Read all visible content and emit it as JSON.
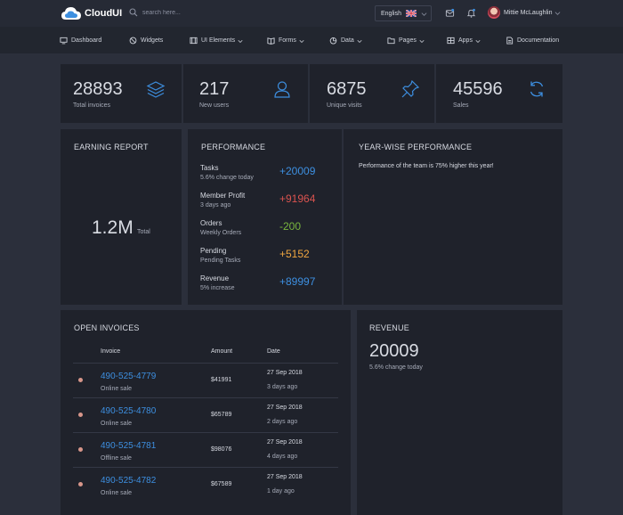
{
  "header": {
    "brand": "CloudUI",
    "search_placeholder": "search here...",
    "language": "English",
    "user_name": "Mittie McLaughlin"
  },
  "nav": [
    {
      "label": "Dashboard"
    },
    {
      "label": "Widgets"
    },
    {
      "label": "UI Elements"
    },
    {
      "label": "Forms"
    },
    {
      "label": "Data"
    },
    {
      "label": "Pages"
    },
    {
      "label": "Apps"
    },
    {
      "label": "Documentation"
    }
  ],
  "stats": [
    {
      "value": "28893",
      "label": "Total invoices",
      "icon": "layers-icon"
    },
    {
      "value": "217",
      "label": "New users",
      "icon": "user-icon"
    },
    {
      "value": "6875",
      "label": "Unique visits",
      "icon": "pin-icon"
    },
    {
      "value": "45596",
      "label": "Sales",
      "icon": "refresh-icon"
    }
  ],
  "earning": {
    "title": "EARNING REPORT",
    "value": "1.2M",
    "sub": "Total"
  },
  "performance": {
    "title": "PERFORMANCE",
    "rows": [
      {
        "name": "Tasks",
        "sub": "5.6% change today",
        "value": "+20009",
        "color": "#3d8fe0"
      },
      {
        "name": "Member Profit",
        "sub": "3 days ago",
        "value": "+91964",
        "color": "#d9534f"
      },
      {
        "name": "Orders",
        "sub": "Weekly Orders",
        "value": "-200",
        "color": "#79b63e"
      },
      {
        "name": "Pending",
        "sub": "Pending Tasks",
        "value": "+5152",
        "color": "#f0a640"
      },
      {
        "name": "Revenue",
        "sub": "5% increase",
        "value": "+89997",
        "color": "#3d8fe0"
      }
    ]
  },
  "yearwise": {
    "title": "YEAR-WISE PERFORMANCE",
    "text": "Performance of the team is 75% higher this year!"
  },
  "invoices": {
    "title": "OPEN INVOICES",
    "headers": {
      "invoice": "Invoice",
      "amount": "Amount",
      "date": "Date"
    },
    "rows": [
      {
        "number": "490-525-4779",
        "type": "Online sale",
        "amount": "$41991",
        "date": "27 Sep 2018",
        "ago": "3 days ago"
      },
      {
        "number": "490-525-4780",
        "type": "Online sale",
        "amount": "$65789",
        "date": "27 Sep 2018",
        "ago": "2 days ago"
      },
      {
        "number": "490-525-4781",
        "type": "Offline sale",
        "amount": "$98076",
        "date": "27 Sep 2018",
        "ago": "4 days ago"
      },
      {
        "number": "490-525-4782",
        "type": "Online sale",
        "amount": "$67589",
        "date": "27 Sep 2018",
        "ago": "1 day ago"
      }
    ]
  },
  "revenue": {
    "title": "REVENUE",
    "value": "20009",
    "sub": "5.6% change today"
  },
  "colors": {
    "accent": "#3d8fe0",
    "bg": "#2b2f3b",
    "card": "#1f222b"
  }
}
